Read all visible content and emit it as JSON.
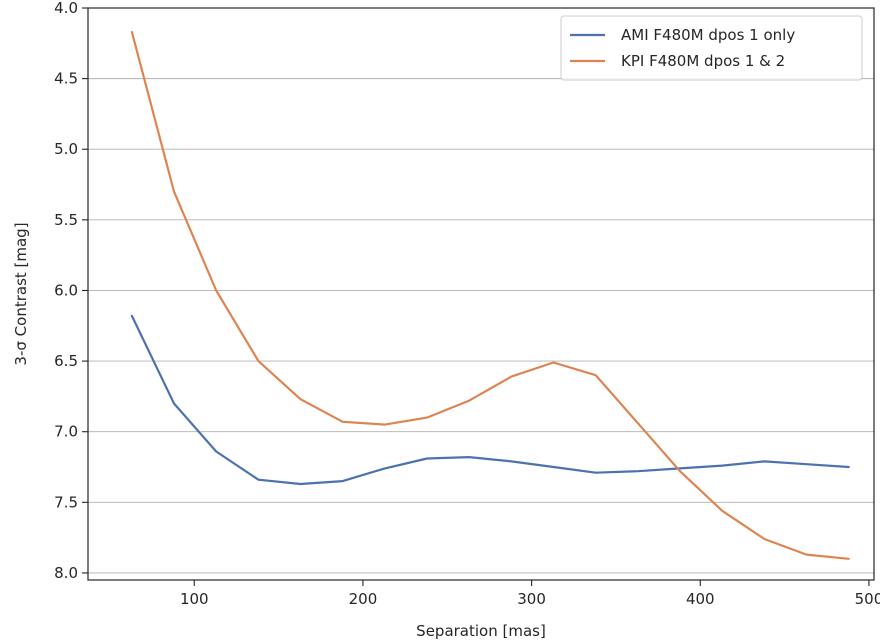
{
  "chart_data": {
    "type": "line",
    "title": "",
    "xlabel": "Separation [mas]",
    "ylabel": "3-σ Contrast [mag]",
    "xlim": [
      37,
      503
    ],
    "ylim": [
      8.05,
      4.0
    ],
    "y_inverted": true,
    "xticks": [
      100,
      200,
      300,
      400,
      500
    ],
    "yticks": [
      4.0,
      4.5,
      5.0,
      5.5,
      6.0,
      6.5,
      7.0,
      7.5,
      8.0
    ],
    "xtick_labels": [
      "100",
      "200",
      "300",
      "400",
      "500"
    ],
    "ytick_labels": [
      "4.0",
      "4.5",
      "5.0",
      "5.5",
      "6.0",
      "6.5",
      "7.0",
      "7.5",
      "8.0"
    ],
    "grid": "horizontal",
    "legend_position": "top-right",
    "series": [
      {
        "name": "AMI F480M dpos 1 only",
        "color": "#4c72b0",
        "x": [
          63,
          88,
          113,
          138,
          163,
          188,
          213,
          238,
          263,
          288,
          313,
          338,
          363,
          388,
          413,
          438,
          463,
          488
        ],
        "y": [
          6.18,
          6.8,
          7.14,
          7.34,
          7.37,
          7.35,
          7.26,
          7.19,
          7.18,
          7.21,
          7.25,
          7.29,
          7.28,
          7.26,
          7.24,
          7.21,
          7.23,
          7.25
        ]
      },
      {
        "name": "KPI F480M dpos 1 & 2",
        "color": "#dd8452",
        "x": [
          63,
          88,
          113,
          138,
          163,
          188,
          213,
          238,
          263,
          288,
          313,
          338,
          363,
          388,
          413,
          438,
          463,
          488
        ],
        "y": [
          4.17,
          5.3,
          6.0,
          6.5,
          6.77,
          6.93,
          6.95,
          6.9,
          6.78,
          6.61,
          6.51,
          6.6,
          6.94,
          7.28,
          7.56,
          7.76,
          7.87,
          7.9
        ]
      }
    ]
  }
}
